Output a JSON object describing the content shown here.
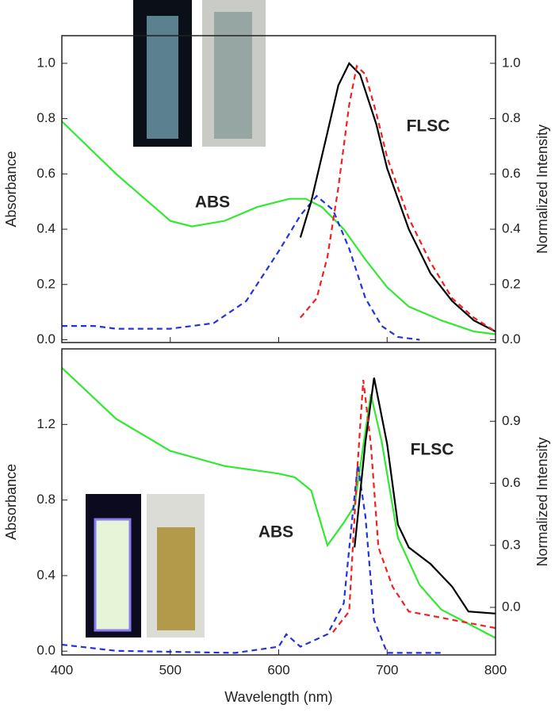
{
  "chart_data": [
    {
      "type": "line",
      "ylabel": "Absorbance",
      "y2label": "Normalized Intensity",
      "xlim": [
        400,
        800
      ],
      "ylim": [
        -0.01,
        1.1
      ],
      "y2lim": [
        -0.01,
        1.1
      ],
      "yticks": [
        {
          "value": 0,
          "label": "0.0"
        },
        {
          "value": 0.2,
          "label": "0.2"
        },
        {
          "value": 0.4,
          "label": "0.4"
        },
        {
          "value": 0.6,
          "label": "0.6"
        },
        {
          "value": 0.8,
          "label": "0.8"
        },
        {
          "value": 1,
          "label": "1.0"
        }
      ],
      "y2ticks": [
        {
          "value": 0,
          "label": "0.0"
        },
        {
          "value": 0.2,
          "label": "0.2"
        },
        {
          "value": 0.4,
          "label": "0.4"
        },
        {
          "value": 0.6,
          "label": "0.6"
        },
        {
          "value": 0.8,
          "label": "0.8"
        },
        {
          "value": 1,
          "label": "1.0"
        }
      ],
      "annotations": [
        "ABS",
        "FLSC"
      ],
      "series": [
        {
          "color": "#33e833",
          "dash": false,
          "axis": "y",
          "x": [
            400,
            450,
            500,
            520,
            550,
            580,
            610,
            625,
            640,
            660,
            680,
            700,
            720,
            750,
            780,
            800
          ],
          "values": [
            0.79,
            0.6,
            0.43,
            0.41,
            0.43,
            0.48,
            0.51,
            0.51,
            0.48,
            0.4,
            0.29,
            0.19,
            0.12,
            0.07,
            0.03,
            0.02
          ]
        },
        {
          "color": "#2233dd",
          "dash": true,
          "axis": "y2",
          "x": [
            400,
            430,
            450,
            500,
            540,
            570,
            600,
            620,
            635,
            650,
            665,
            680,
            695,
            710,
            730
          ],
          "values": [
            0.05,
            0.05,
            0.04,
            0.04,
            0.06,
            0.14,
            0.32,
            0.45,
            0.52,
            0.47,
            0.33,
            0.15,
            0.05,
            0.01,
            0
          ]
        },
        {
          "color": "#000000",
          "dash": false,
          "axis": "y2",
          "x": [
            620,
            630,
            645,
            655,
            665,
            675,
            690,
            700,
            720,
            740,
            760,
            780,
            800
          ],
          "values": [
            0.37,
            0.5,
            0.75,
            0.92,
            1.0,
            0.96,
            0.78,
            0.62,
            0.4,
            0.24,
            0.14,
            0.07,
            0.03
          ]
        },
        {
          "color": "#ee2222",
          "dash": true,
          "axis": "y2",
          "x": [
            620,
            635,
            645,
            655,
            665,
            672,
            680,
            690,
            700,
            720,
            740,
            760,
            780,
            800
          ],
          "values": [
            0.08,
            0.15,
            0.3,
            0.55,
            0.85,
            0.99,
            0.96,
            0.82,
            0.66,
            0.44,
            0.28,
            0.15,
            0.08,
            0.03
          ]
        }
      ]
    },
    {
      "type": "line",
      "ylabel": "Absorbance",
      "y2label": "Normalized Intensity",
      "xlabel": "Wavelength (nm)",
      "xlim": [
        400,
        800
      ],
      "ylim": [
        -0.02,
        1.6
      ],
      "y2lim": [
        -0.23,
        1.25
      ],
      "xticks": [
        400,
        500,
        600,
        700,
        800
      ],
      "yticks": [
        {
          "value": 0,
          "label": "0.0"
        },
        {
          "value": 0.4,
          "label": "0.4"
        },
        {
          "value": 0.8,
          "label": "0.8"
        },
        {
          "value": 1.2,
          "label": "1.2"
        }
      ],
      "y2ticks": [
        {
          "value": 0,
          "label": "0.0"
        },
        {
          "value": 0.3,
          "label": "0.3"
        },
        {
          "value": 0.6,
          "label": "0.6"
        },
        {
          "value": 0.9,
          "label": "0.9"
        }
      ],
      "annotations": [
        "ABS",
        "FLSC"
      ],
      "series": [
        {
          "color": "#33e833",
          "dash": false,
          "axis": "y",
          "x": [
            400,
            450,
            500,
            550,
            600,
            615,
            630,
            645,
            660,
            670,
            685,
            695,
            710,
            730,
            750,
            770,
            800
          ],
          "values": [
            1.5,
            1.23,
            1.06,
            0.98,
            0.94,
            0.92,
            0.85,
            0.56,
            0.68,
            0.77,
            1.36,
            1.11,
            0.6,
            0.35,
            0.22,
            0.16,
            0.07
          ]
        },
        {
          "color": "#2233dd",
          "dash": true,
          "axis": "y2",
          "x": [
            400,
            450,
            560,
            600,
            607,
            620,
            645,
            660,
            668,
            673,
            680,
            688,
            700,
            750
          ],
          "values": [
            -0.18,
            -0.21,
            -0.22,
            -0.19,
            -0.13,
            -0.19,
            -0.13,
            0.02,
            0.44,
            0.69,
            0.44,
            -0.06,
            -0.22,
            -0.22
          ]
        },
        {
          "color": "#000000",
          "dash": false,
          "axis": "y2",
          "x": [
            670,
            680,
            688,
            700,
            710,
            720,
            740,
            760,
            775,
            800
          ],
          "values": [
            0.29,
            0.8,
            1.11,
            0.79,
            0.4,
            0.29,
            0.21,
            0.1,
            -0.02,
            -0.03
          ]
        },
        {
          "color": "#ee2222",
          "dash": true,
          "axis": "y2",
          "x": [
            650,
            665,
            672,
            678,
            685,
            692,
            705,
            720,
            740,
            760,
            800
          ],
          "values": [
            -0.12,
            -0.02,
            0.63,
            1.1,
            0.79,
            0.29,
            0.1,
            -0.02,
            -0.04,
            -0.06,
            -0.1
          ]
        }
      ]
    }
  ]
}
